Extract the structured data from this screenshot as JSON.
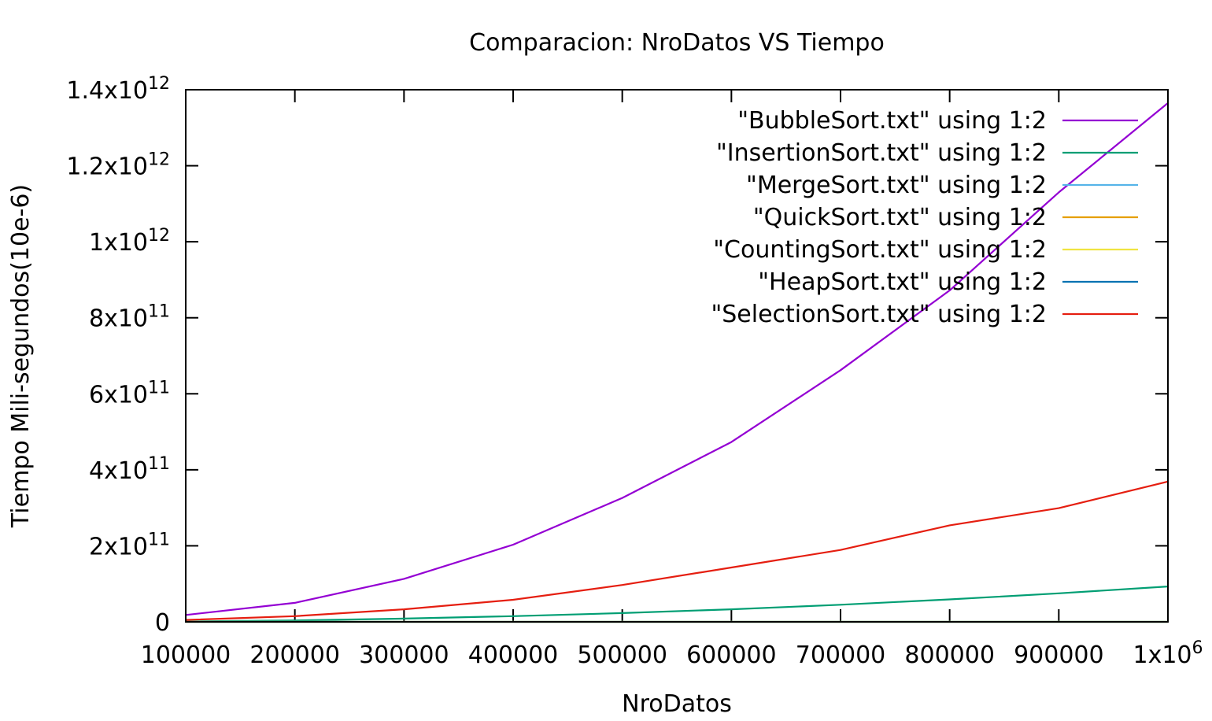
{
  "chart_data": {
    "type": "line",
    "title": "Comparacion: NroDatos VS Tiempo",
    "xlabel": "NroDatos",
    "ylabel": "Tiempo Mili-segundos(10e-6)",
    "xlim": [
      100000,
      1000000
    ],
    "ylim": [
      0,
      1400000000000
    ],
    "grid": false,
    "legend_position": "top-right",
    "x_ticks": [
      {
        "value": 100000,
        "label": "100000"
      },
      {
        "value": 200000,
        "label": "200000"
      },
      {
        "value": 300000,
        "label": "300000"
      },
      {
        "value": 400000,
        "label": "400000"
      },
      {
        "value": 500000,
        "label": "500000"
      },
      {
        "value": 600000,
        "label": "600000"
      },
      {
        "value": 700000,
        "label": "700000"
      },
      {
        "value": 800000,
        "label": "800000"
      },
      {
        "value": 900000,
        "label": "900000"
      },
      {
        "value": 1000000,
        "label": "1x10",
        "exp": "6"
      }
    ],
    "y_ticks": [
      {
        "value": 0,
        "label": "0"
      },
      {
        "value": 200000000000,
        "label": "2x10",
        "exp": "11"
      },
      {
        "value": 400000000000,
        "label": "4x10",
        "exp": "11"
      },
      {
        "value": 600000000000,
        "label": "6x10",
        "exp": "11"
      },
      {
        "value": 800000000000,
        "label": "8x10",
        "exp": "11"
      },
      {
        "value": 1000000000000,
        "label": "1x10",
        "exp": "12"
      },
      {
        "value": 1200000000000,
        "label": "1.2x10",
        "exp": "12"
      },
      {
        "value": 1400000000000,
        "label": "1.4x10",
        "exp": "12"
      }
    ],
    "x": [
      100000,
      200000,
      300000,
      400000,
      500000,
      600000,
      700000,
      800000,
      900000,
      1000000
    ],
    "series": [
      {
        "name": "\"BubbleSort.txt\" using 1:2",
        "color": "#9400d3",
        "values": [
          18000000000,
          50000000000,
          113000000000,
          203000000000,
          326000000000,
          473000000000,
          662000000000,
          872000000000,
          1130000000000,
          1365000000000
        ]
      },
      {
        "name": "\"InsertionSort.txt\" using 1:2",
        "color": "#009e73",
        "values": [
          1000000000,
          3800000000,
          8500000000,
          15000000000,
          23000000000,
          33000000000,
          45000000000,
          59000000000,
          75000000000,
          93000000000
        ]
      },
      {
        "name": "\"MergeSort.txt\" using 1:2",
        "color": "#56b4e9",
        "values": [
          0,
          0,
          0,
          0,
          0,
          0,
          0,
          0,
          0,
          0
        ]
      },
      {
        "name": "\"QuickSort.txt\" using 1:2",
        "color": "#e69f00",
        "values": [
          0,
          0,
          0,
          0,
          0,
          0,
          0,
          0,
          0,
          0
        ]
      },
      {
        "name": "\"CountingSort.txt\" using 1:2",
        "color": "#f0e442",
        "values": [
          0,
          0,
          0,
          0,
          0,
          0,
          0,
          0,
          0,
          0
        ]
      },
      {
        "name": "\"HeapSort.txt\" using 1:2",
        "color": "#0072b2",
        "values": [
          0,
          0,
          0,
          0,
          0,
          0,
          0,
          0,
          0,
          0
        ]
      },
      {
        "name": "\"SelectionSort.txt\" using 1:2",
        "color": "#e51e10",
        "values": [
          5000000000,
          15000000000,
          33000000000,
          58000000000,
          97000000000,
          143000000000,
          189000000000,
          254000000000,
          299000000000,
          369000000000
        ]
      }
    ]
  }
}
